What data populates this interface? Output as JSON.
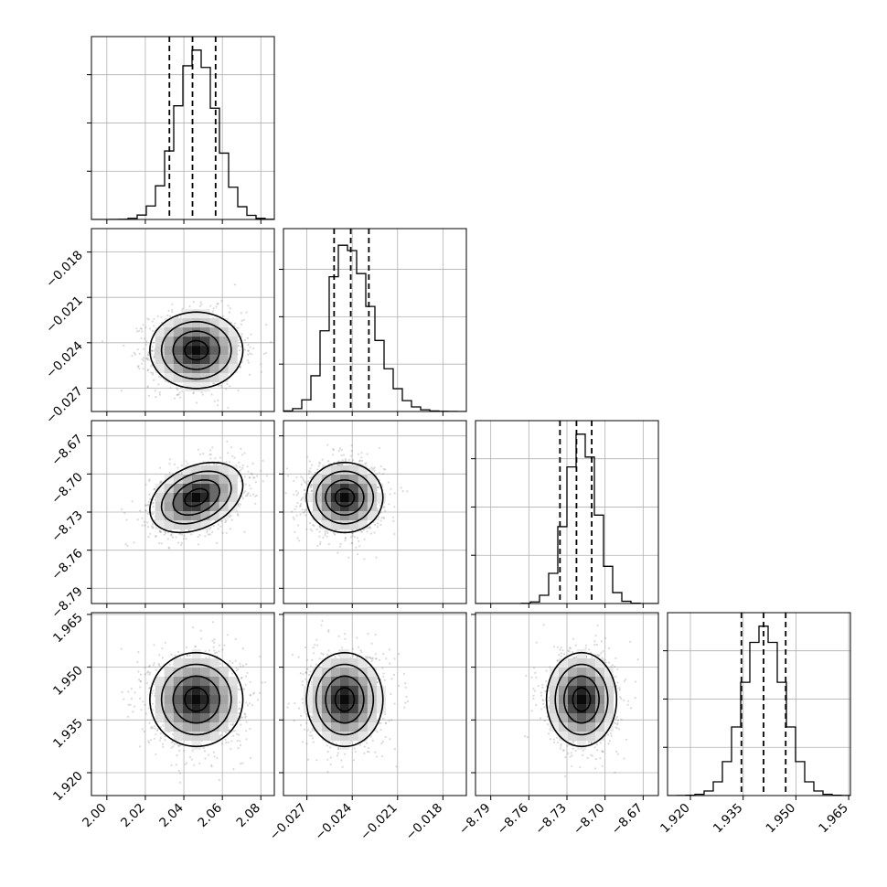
{
  "chart_data": {
    "type": "corner",
    "grid": true,
    "quantile_lines": "dashed",
    "parameters": [
      {
        "range": [
          1.992,
          2.087
        ],
        "ticks": [
          2.0,
          2.02,
          2.04,
          2.06,
          2.08
        ],
        "tick_labels": [
          "2.00",
          "2.02",
          "2.04",
          "2.06",
          "2.08"
        ],
        "quantiles": [
          2.0325,
          2.0445,
          2.0565
        ],
        "hist_peak": 2.0465,
        "hist_sigma": 0.0105,
        "hist_skew": 0.0,
        "hist_ymax": 1.08
      },
      {
        "range": [
          -0.02855,
          -0.01645
        ],
        "ticks": [
          -0.027,
          -0.024,
          -0.021,
          -0.018
        ],
        "tick_labels": [
          "−0.027",
          "−0.024",
          "−0.021",
          "−0.018"
        ],
        "quantiles": [
          -0.0252,
          -0.0241,
          -0.0229
        ],
        "hist_peak": -0.0245,
        "hist_sigma": 0.0011,
        "hist_skew": 1.0,
        "hist_ymax": 1.1
      },
      {
        "range": [
          -8.802,
          -8.658
        ],
        "ticks": [
          -8.79,
          -8.76,
          -8.73,
          -8.7,
          -8.67
        ],
        "tick_labels": [
          "−8.79",
          "−8.76",
          "−8.73",
          "−8.70",
          "−8.67"
        ],
        "quantiles": [
          -8.7355,
          -8.7225,
          -8.7105
        ],
        "hist_peak": -8.7185,
        "hist_sigma": 0.012,
        "hist_skew": 0.0,
        "hist_ymax": 1.08
      },
      {
        "range": [
          1.9135,
          1.9655
        ],
        "ticks": [
          1.92,
          1.935,
          1.95,
          1.965
        ],
        "tick_labels": [
          "1.920",
          "1.935",
          "1.950",
          "1.965"
        ],
        "quantiles": [
          1.9345,
          1.9408,
          1.9471
        ],
        "hist_peak": 1.9408,
        "hist_sigma": 0.0058,
        "hist_skew": 0.0,
        "hist_ymax": 1.08
      }
    ],
    "correlations": [
      [
        1.0,
        0.0,
        0.35,
        0.0
      ],
      [
        0.0,
        1.0,
        0.0,
        0.0
      ],
      [
        0.35,
        0.0,
        1.0,
        0.0
      ],
      [
        0.0,
        0.0,
        0.0,
        1.0
      ]
    ],
    "contour_sigmas": [
      0.5,
      1.0,
      1.5,
      2.0
    ]
  }
}
